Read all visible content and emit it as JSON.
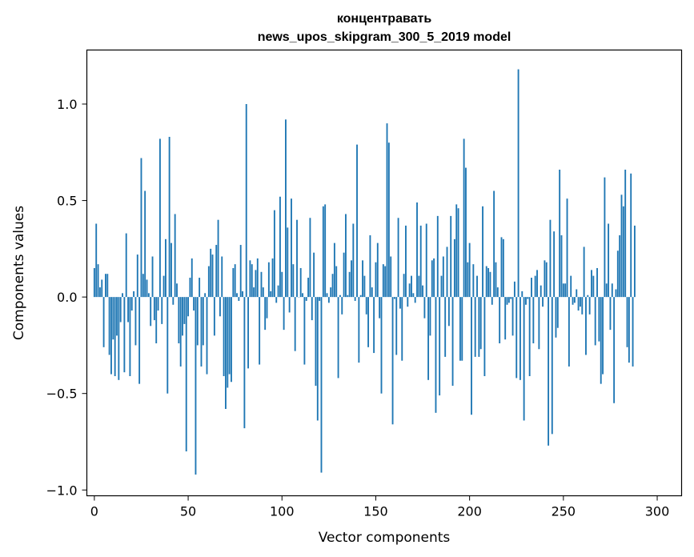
{
  "chart_data": {
    "type": "bar",
    "title_line1": "концентравать",
    "title_line2": "news_upos_skipgram_300_5_2019 model",
    "xlabel": "Vector components",
    "ylabel": "Components values",
    "xlim": [
      -4,
      313
    ],
    "ylim": [
      -1.03,
      1.28
    ],
    "x_ticks": [
      0,
      50,
      100,
      150,
      200,
      250,
      300
    ],
    "x_tick_labels": [
      "0",
      "50",
      "100",
      "150",
      "200",
      "250",
      "300"
    ],
    "y_ticks": [
      -1.0,
      -0.5,
      0.0,
      0.5,
      1.0
    ],
    "y_tick_labels": [
      "−1.0",
      "−0.5",
      "0.0",
      "0.5",
      "1.0"
    ],
    "bar_color": "#1f77b4",
    "grid": false,
    "values": [
      0.15,
      0.38,
      0.17,
      0.05,
      0.09,
      -0.26,
      0.12,
      0.12,
      -0.3,
      -0.4,
      -0.22,
      -0.41,
      -0.2,
      -0.43,
      -0.13,
      0.02,
      -0.39,
      0.33,
      -0.13,
      -0.41,
      -0.07,
      0.03,
      -0.25,
      0.22,
      -0.45,
      0.72,
      0.12,
      0.55,
      0.09,
      0.02,
      -0.15,
      0.21,
      -0.12,
      -0.24,
      -0.07,
      0.82,
      -0.14,
      0.11,
      0.3,
      -0.5,
      0.83,
      0.28,
      -0.04,
      0.43,
      0.07,
      -0.24,
      -0.36,
      -0.2,
      -0.14,
      -0.8,
      -0.1,
      0.1,
      0.2,
      -0.07,
      -0.92,
      -0.25,
      0.1,
      -0.36,
      -0.25,
      0.02,
      -0.4,
      0.16,
      0.25,
      0.22,
      -0.2,
      0.27,
      0.4,
      -0.1,
      0.21,
      -0.41,
      -0.58,
      -0.47,
      -0.4,
      -0.44,
      0.15,
      0.17,
      0.02,
      -0.02,
      0.27,
      0.03,
      -0.68,
      1.0,
      -0.37,
      0.19,
      0.17,
      0.05,
      0.14,
      0.2,
      -0.35,
      0.13,
      0.05,
      -0.17,
      -0.11,
      0.18,
      0.03,
      0.2,
      0.45,
      -0.03,
      0.06,
      0.52,
      0.13,
      -0.17,
      0.92,
      0.36,
      -0.08,
      0.51,
      0.17,
      -0.28,
      0.4,
      0.0,
      0.15,
      0.02,
      -0.35,
      -0.02,
      0.1,
      0.41,
      -0.12,
      0.23,
      -0.46,
      -0.64,
      -0.02,
      -0.91,
      0.47,
      0.48,
      0.02,
      -0.03,
      0.05,
      0.12,
      0.28,
      0.16,
      -0.42,
      0.01,
      -0.09,
      0.23,
      0.43,
      0.01,
      0.13,
      0.19,
      0.38,
      -0.02,
      0.79,
      -0.34,
      0.01,
      0.19,
      0.11,
      -0.09,
      -0.26,
      0.32,
      0.05,
      -0.29,
      0.18,
      0.28,
      -0.11,
      -0.5,
      0.17,
      0.16,
      0.9,
      0.8,
      0.21,
      -0.66,
      -0.01,
      -0.3,
      0.41,
      -0.06,
      -0.33,
      0.12,
      0.37,
      -0.05,
      0.07,
      0.11,
      0.02,
      -0.03,
      0.49,
      0.11,
      0.37,
      0.06,
      -0.11,
      0.38,
      -0.43,
      -0.2,
      0.19,
      0.2,
      -0.6,
      0.42,
      -0.51,
      0.11,
      0.21,
      -0.31,
      0.26,
      -0.15,
      0.42,
      -0.46,
      0.3,
      0.48,
      0.46,
      -0.33,
      -0.33,
      0.82,
      0.67,
      0.18,
      0.28,
      -0.61,
      0.17,
      -0.31,
      0.11,
      -0.31,
      -0.27,
      0.47,
      -0.41,
      0.16,
      0.15,
      0.13,
      -0.04,
      0.55,
      0.18,
      0.05,
      -0.24,
      0.31,
      0.3,
      -0.22,
      -0.04,
      -0.03,
      -0.01,
      -0.2,
      0.08,
      -0.42,
      1.18,
      -0.43,
      0.03,
      -0.64,
      -0.04,
      -0.01,
      -0.41,
      0.1,
      -0.24,
      0.11,
      0.14,
      -0.27,
      0.06,
      -0.05,
      0.19,
      0.18,
      -0.77,
      0.4,
      -0.71,
      0.34,
      -0.21,
      -0.16,
      0.66,
      0.32,
      0.07,
      0.07,
      0.51,
      -0.36,
      0.11,
      -0.04,
      -0.03,
      0.04,
      -0.07,
      -0.05,
      -0.09,
      0.26,
      -0.3,
      0.01,
      -0.09,
      0.14,
      0.11,
      -0.25,
      0.15,
      -0.23,
      -0.45,
      -0.4,
      0.62,
      0.07,
      0.38,
      -0.17,
      0.07,
      -0.55,
      0.04,
      0.24,
      0.32,
      0.53,
      0.47,
      0.66,
      -0.26,
      -0.34,
      0.64,
      -0.36,
      0.37
    ]
  }
}
